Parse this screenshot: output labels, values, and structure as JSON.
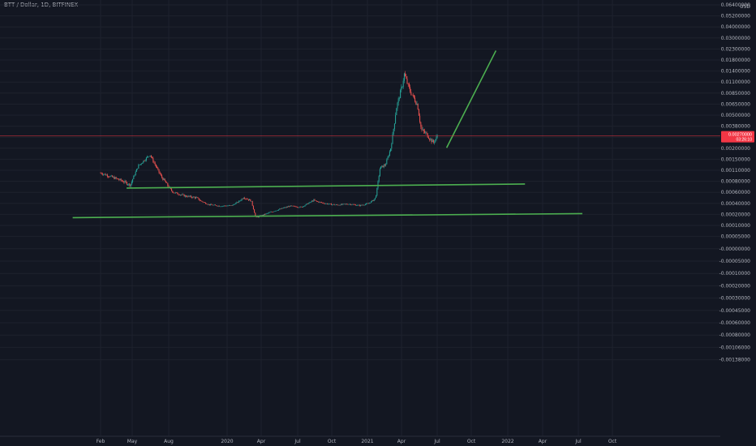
{
  "header": {
    "symbol_title": "BTT / Dollar, 1D, BITFINEX"
  },
  "price_axis": {
    "unit": "USD",
    "tick_labels": [
      "0.06400000",
      "0.05200000",
      "0.04000000",
      "0.03000000",
      "0.02300000",
      "0.01800000",
      "0.01400000",
      "0.01100000",
      "0.00850000",
      "0.00650000",
      "0.00500000",
      "0.00380000",
      "0.00280000",
      "0.00200000",
      "0.00150000",
      "0.00110000",
      "0.00080000",
      "0.00060000",
      "0.00040000",
      "0.00020000",
      "0.00010000",
      "0.00005000",
      "-0.00000000",
      "-0.00005000",
      "-0.00010000",
      "-0.00020000",
      "-0.00030000",
      "-0.00045000",
      "-0.00060000",
      "-0.00080000",
      "-0.00106000",
      "-0.00138000"
    ],
    "current_price_label": "0.00270000",
    "current_price_countdown": "03:26:10",
    "current_price_color": "#f23645"
  },
  "time_axis": {
    "tick_labels": [
      "Feb",
      "May",
      "Aug",
      "2020",
      "Apr",
      "Jul",
      "Oct",
      "2021",
      "Apr",
      "Jul",
      "Oct",
      "2022",
      "Apr",
      "Jul",
      "Oct"
    ]
  },
  "colors": {
    "background": "#131722",
    "up_candle": "#26a69a",
    "down_candle": "#ef5350",
    "trendline": "#4caf50",
    "grid": "#1e222d"
  },
  "chart_data": {
    "type": "candlestick",
    "title": "BTT / Dollar, 1D, BITFINEX",
    "ylabel": "USD",
    "scale": "log",
    "ylim": [
      5e-05,
      0.064
    ],
    "grid": true,
    "series": [
      {
        "name": "BTT / Dollar",
        "x": [
          "2019-02-01",
          "2019-03-01",
          "2019-04-01",
          "2019-04-20",
          "2019-05-10",
          "2019-06-10",
          "2019-07-10",
          "2019-08-10",
          "2019-09-10",
          "2019-10-10",
          "2019-11-10",
          "2019-12-10",
          "2020-01-10",
          "2020-02-10",
          "2020-03-01",
          "2020-03-13",
          "2020-04-10",
          "2020-05-10",
          "2020-06-10",
          "2020-07-10",
          "2020-08-10",
          "2020-09-10",
          "2020-10-10",
          "2020-11-10",
          "2020-12-10",
          "2021-01-01",
          "2021-01-20",
          "2021-02-01",
          "2021-02-15",
          "2021-03-01",
          "2021-03-15",
          "2021-04-01",
          "2021-04-05",
          "2021-04-20",
          "2021-05-10",
          "2021-05-20",
          "2021-06-01",
          "2021-06-20",
          "2021-07-01"
        ],
        "values": [
          0.00095,
          0.00085,
          0.00075,
          0.00068,
          0.00115,
          0.0016,
          0.00085,
          0.00055,
          0.00048,
          0.00045,
          0.00032,
          0.00029,
          0.0003,
          0.00046,
          0.0004,
          0.00014,
          0.00018,
          0.00023,
          0.00029,
          0.00027,
          0.00041,
          0.00034,
          0.00031,
          0.00033,
          0.0003,
          0.00034,
          0.00045,
          0.0011,
          0.0012,
          0.0019,
          0.0055,
          0.01,
          0.0125,
          0.0085,
          0.006,
          0.0032,
          0.0029,
          0.0022,
          0.0027
        ]
      }
    ],
    "trendlines": [
      {
        "from": [
          "2019-04-10",
          0.00063
        ],
        "to": [
          "2022-02-15",
          0.0007
        ]
      },
      {
        "from": [
          "2018-11-20",
          0.00014
        ],
        "to": [
          "2022-07-15",
          0.00018
        ]
      },
      {
        "from": [
          "2021-07-25",
          0.0019
        ],
        "to": [
          "2021-12-01",
          0.021
        ]
      }
    ],
    "current_price": 0.0027
  }
}
